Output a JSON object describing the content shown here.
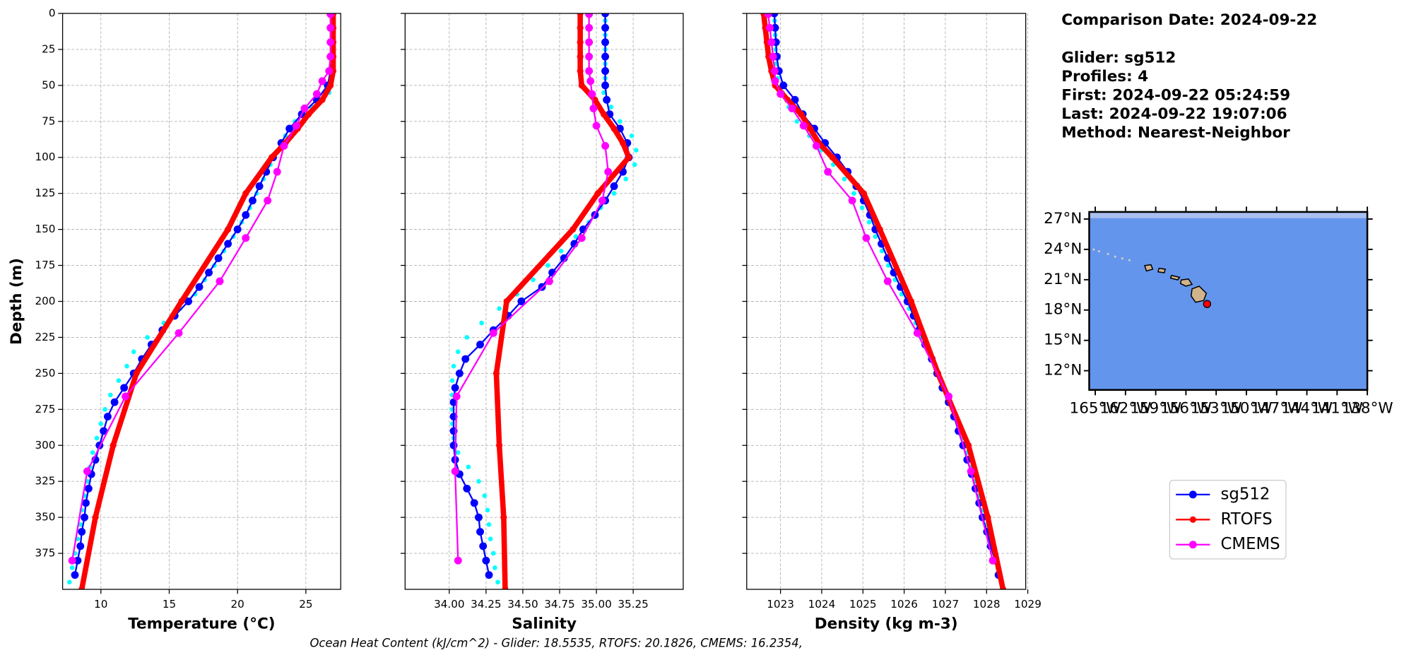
{
  "chart_data": [
    {
      "type": "line",
      "xlabel": "Temperature (°C)",
      "ylabel": "Depth (m)",
      "xlim": [
        7.2,
        27.55
      ],
      "xticks": [
        10,
        15,
        20,
        25
      ],
      "ylim": [
        0,
        400
      ],
      "invert_y": true,
      "yticks": [
        0,
        25,
        50,
        75,
        100,
        125,
        150,
        175,
        200,
        225,
        250,
        275,
        300,
        325,
        350,
        375
      ],
      "grid": true,
      "series": [
        {
          "color": "#00ffff",
          "depths": [
            5,
            15,
            25,
            35,
            45,
            55,
            65,
            75,
            85,
            95,
            105,
            115,
            125,
            135,
            145,
            155,
            165,
            175,
            185,
            195,
            205,
            215,
            225,
            235,
            245,
            255,
            265,
            275,
            285,
            295,
            305,
            315,
            325,
            335,
            345,
            355,
            365,
            375,
            385,
            395
          ],
          "values": [
            26.9,
            26.9,
            26.9,
            26.9,
            26.9,
            26.7,
            25.4,
            24.2,
            23.5,
            23.0,
            22.4,
            21.9,
            21.4,
            20.9,
            20.3,
            19.7,
            19.0,
            18.3,
            17.6,
            16.9,
            15.8,
            14.6,
            13.4,
            12.4,
            11.9,
            11.3,
            10.7,
            10.3,
            10.0,
            9.7,
            9.4,
            9.2,
            9.0,
            8.8,
            8.6,
            8.5,
            8.3,
            8.1,
            7.9,
            7.7
          ]
        },
        {
          "name": "sg512",
          "color": "#0000ff",
          "depths": [
            0,
            10,
            20,
            30,
            40,
            50,
            60,
            70,
            80,
            90,
            100,
            110,
            120,
            130,
            140,
            150,
            160,
            170,
            180,
            190,
            200,
            210,
            220,
            230,
            240,
            250,
            260,
            270,
            280,
            290,
            300,
            310,
            320,
            330,
            340,
            350,
            360,
            370,
            380,
            390
          ],
          "values": [
            26.9,
            26.9,
            26.9,
            26.9,
            26.8,
            26.6,
            25.8,
            24.7,
            23.8,
            23.2,
            22.6,
            22.1,
            21.6,
            21.1,
            20.6,
            20.0,
            19.3,
            18.6,
            17.9,
            17.2,
            16.4,
            15.4,
            14.5,
            13.7,
            13.0,
            12.4,
            11.7,
            11.0,
            10.5,
            10.2,
            9.9,
            9.6,
            9.3,
            9.1,
            8.9,
            8.8,
            8.6,
            8.5,
            8.3,
            8.1
          ]
        },
        {
          "name": "RTOFS",
          "color": "#ff0000",
          "depths": [
            0,
            10,
            20,
            30,
            40,
            50,
            60,
            70,
            80,
            90,
            100,
            125,
            150,
            200,
            250,
            300,
            350,
            400
          ],
          "values": [
            27.0,
            27.0,
            27.0,
            27.0,
            27.0,
            26.8,
            26.2,
            25.2,
            24.4,
            23.5,
            22.5,
            20.6,
            19.3,
            15.9,
            12.6,
            10.9,
            9.6,
            8.6
          ]
        },
        {
          "name": "CMEMS",
          "color": "#ff00ff",
          "depths": [
            0.5,
            10,
            20,
            30,
            40,
            47,
            56,
            66,
            78,
            92,
            110,
            130,
            156,
            186,
            222,
            266,
            318,
            380
          ],
          "values": [
            26.8,
            26.8,
            26.8,
            26.8,
            26.7,
            26.2,
            25.8,
            24.9,
            24.3,
            23.4,
            22.9,
            22.2,
            20.6,
            18.7,
            15.7,
            11.8,
            9.0,
            7.9
          ]
        }
      ]
    },
    {
      "type": "line",
      "xlabel": "Salinity",
      "sharey": true,
      "xlim": [
        33.7,
        35.59
      ],
      "xticks": [
        {
          "value": 34,
          "label": "34.00"
        },
        {
          "value": 34.25,
          "label": "34.25"
        },
        {
          "value": 34.5,
          "label": "34.50"
        },
        {
          "value": 34.75,
          "label": "34.75"
        },
        {
          "value": 35,
          "label": "35.00"
        },
        {
          "value": 35.25,
          "label": "35.25"
        }
      ],
      "grid": true,
      "series": [
        {
          "color": "#00ffff",
          "depths": [
            5,
            15,
            25,
            35,
            45,
            55,
            65,
            75,
            85,
            95,
            105,
            115,
            125,
            135,
            145,
            155,
            165,
            175,
            185,
            195,
            205,
            215,
            225,
            235,
            245,
            255,
            265,
            275,
            285,
            295,
            305,
            315,
            325,
            335,
            345,
            355,
            365,
            375,
            385,
            395
          ],
          "values": [
            35.06,
            35.06,
            35.06,
            35.06,
            35.06,
            35.05,
            35.1,
            35.16,
            35.24,
            35.27,
            35.26,
            35.2,
            35.12,
            35.03,
            34.95,
            34.86,
            34.76,
            34.67,
            34.57,
            34.46,
            34.34,
            34.22,
            34.12,
            34.06,
            34.03,
            34.02,
            34.02,
            34.02,
            34.02,
            34.03,
            34.06,
            34.13,
            34.2,
            34.24,
            34.26,
            34.27,
            34.28,
            34.3,
            34.31,
            34.33
          ]
        },
        {
          "name": "sg512",
          "color": "#0000ff",
          "depths": [
            0,
            10,
            20,
            30,
            40,
            50,
            60,
            70,
            80,
            90,
            100,
            110,
            120,
            130,
            140,
            150,
            160,
            170,
            180,
            190,
            200,
            210,
            220,
            230,
            240,
            250,
            260,
            270,
            280,
            290,
            300,
            310,
            320,
            330,
            340,
            350,
            360,
            370,
            380,
            390
          ],
          "values": [
            35.06,
            35.06,
            35.06,
            35.06,
            35.06,
            35.06,
            35.07,
            35.09,
            35.16,
            35.21,
            35.22,
            35.18,
            35.12,
            35.06,
            34.99,
            34.91,
            34.85,
            34.78,
            34.7,
            34.63,
            34.49,
            34.4,
            34.3,
            34.21,
            34.11,
            34.07,
            34.04,
            34.03,
            34.03,
            34.03,
            34.03,
            34.04,
            34.07,
            34.12,
            34.17,
            34.2,
            34.21,
            34.23,
            34.25,
            34.27
          ]
        },
        {
          "name": "RTOFS",
          "color": "#ff0000",
          "depths": [
            0,
            10,
            20,
            30,
            40,
            50,
            60,
            70,
            80,
            90,
            100,
            125,
            150,
            200,
            250,
            300,
            350,
            400
          ],
          "values": [
            34.89,
            34.89,
            34.89,
            34.89,
            34.89,
            34.9,
            34.99,
            35.05,
            35.12,
            35.18,
            35.22,
            35.01,
            34.84,
            34.39,
            34.32,
            34.34,
            34.37,
            34.38
          ]
        },
        {
          "name": "CMEMS",
          "color": "#ff00ff",
          "depths": [
            0.5,
            10,
            20,
            30,
            40,
            47,
            56,
            66,
            78,
            92,
            110,
            130,
            156,
            186,
            222,
            266,
            318,
            380
          ],
          "values": [
            34.95,
            34.95,
            34.95,
            34.95,
            34.95,
            34.96,
            34.97,
            34.98,
            35.0,
            35.06,
            35.08,
            35.04,
            34.9,
            34.68,
            34.3,
            34.05,
            34.04,
            34.06
          ]
        }
      ]
    },
    {
      "type": "line",
      "xlabel": "Density (kg m-3)",
      "sharey": true,
      "xlim": [
        1022.18,
        1028.95
      ],
      "xticks": [
        1023,
        1024,
        1025,
        1026,
        1027,
        1028,
        1029
      ],
      "grid": true,
      "series": [
        {
          "color": "#00ffff",
          "depths": [
            5,
            15,
            25,
            35,
            45,
            55,
            65,
            75,
            85,
            95,
            105,
            115,
            125,
            135,
            145,
            155,
            165,
            175,
            185,
            195,
            205,
            215,
            225,
            235,
            245,
            255,
            265,
            275,
            285,
            295,
            305,
            315,
            325,
            335,
            345,
            355,
            365,
            375,
            385,
            395
          ],
          "values": [
            1022.86,
            1022.87,
            1022.88,
            1022.9,
            1022.93,
            1023.05,
            1023.2,
            1023.4,
            1023.7,
            1023.98,
            1024.28,
            1024.55,
            1024.78,
            1024.98,
            1025.15,
            1025.3,
            1025.46,
            1025.62,
            1025.78,
            1025.94,
            1026.12,
            1026.28,
            1026.44,
            1026.6,
            1026.76,
            1026.9,
            1027.04,
            1027.18,
            1027.31,
            1027.42,
            1027.53,
            1027.63,
            1027.73,
            1027.82,
            1027.91,
            1028.0,
            1028.09,
            1028.18,
            1028.27,
            1028.36
          ]
        },
        {
          "name": "sg512",
          "color": "#0000ff",
          "depths": [
            0,
            10,
            20,
            30,
            40,
            50,
            60,
            70,
            80,
            90,
            100,
            110,
            120,
            130,
            140,
            150,
            160,
            170,
            180,
            190,
            200,
            210,
            220,
            230,
            240,
            250,
            260,
            270,
            280,
            290,
            300,
            310,
            320,
            330,
            340,
            350,
            360,
            370,
            380,
            390
          ],
          "values": [
            1022.85,
            1022.87,
            1022.89,
            1022.91,
            1022.96,
            1023.07,
            1023.35,
            1023.54,
            1023.82,
            1024.08,
            1024.37,
            1024.63,
            1024.84,
            1025.02,
            1025.17,
            1025.3,
            1025.45,
            1025.6,
            1025.75,
            1025.91,
            1026.08,
            1026.23,
            1026.36,
            1026.51,
            1026.67,
            1026.8,
            1026.93,
            1027.08,
            1027.21,
            1027.32,
            1027.43,
            1027.53,
            1027.64,
            1027.73,
            1027.82,
            1027.9,
            1028.01,
            1028.1,
            1028.21,
            1028.29
          ]
        },
        {
          "name": "RTOFS",
          "color": "#ff0000",
          "depths": [
            0,
            10,
            20,
            30,
            40,
            50,
            60,
            70,
            80,
            90,
            100,
            125,
            150,
            200,
            250,
            300,
            350,
            400
          ],
          "values": [
            1022.59,
            1022.63,
            1022.67,
            1022.71,
            1022.78,
            1022.87,
            1023.17,
            1023.5,
            1023.72,
            1023.93,
            1024.26,
            1025.02,
            1025.41,
            1026.17,
            1026.82,
            1027.56,
            1028.03,
            1028.4
          ]
        },
        {
          "name": "CMEMS",
          "color": "#ff00ff",
          "depths": [
            0.5,
            10,
            20,
            30,
            40,
            47,
            56,
            66,
            78,
            92,
            110,
            130,
            156,
            186,
            222,
            266,
            318,
            380
          ],
          "values": [
            1022.7,
            1022.74,
            1022.78,
            1022.82,
            1022.86,
            1022.87,
            1023.0,
            1023.28,
            1023.56,
            1023.87,
            1024.15,
            1024.74,
            1025.08,
            1025.6,
            1026.32,
            1027.08,
            1027.62,
            1028.15
          ]
        }
      ]
    },
    {
      "type": "map",
      "ocean_color": "#6495ed",
      "xlim": [
        -165.6,
        -138
      ],
      "ylim": [
        10.1,
        27.7
      ],
      "xticks": [
        {
          "value": -165,
          "label": "165°W"
        },
        {
          "value": -162,
          "label": "162°W"
        },
        {
          "value": -159,
          "label": "159°W"
        },
        {
          "value": -156,
          "label": "156°W"
        },
        {
          "value": -153,
          "label": "153°W"
        },
        {
          "value": -150,
          "label": "150°W"
        },
        {
          "value": -147,
          "label": "147°W"
        },
        {
          "value": -144,
          "label": "144°W"
        },
        {
          "value": -141,
          "label": "141°W"
        },
        {
          "value": -138,
          "label": "138°W"
        }
      ],
      "yticks": [
        {
          "value": 12,
          "label": "12°N"
        },
        {
          "value": 15,
          "label": "15°N"
        },
        {
          "value": 18,
          "label": "18°N"
        },
        {
          "value": 21,
          "label": "21°N"
        },
        {
          "value": 24,
          "label": "24°N"
        },
        {
          "value": 27,
          "label": "27°N"
        }
      ],
      "marker": {
        "x": -153.9,
        "y": 18.6,
        "color": "#ff0000"
      }
    }
  ],
  "info": {
    "comparison_date": "Comparison Date: 2024-09-22",
    "glider": "Glider: sg512",
    "profiles": "Profiles: 4",
    "first": "First: 2024-09-22 05:24:59",
    "last": "Last: 2024-09-22 19:07:06",
    "method": "Method: Nearest-Neighbor"
  },
  "footer": "Ocean Heat Content (kJ/cm^2) - Glider: 18.5535,  RTOFS: 20.1826,  CMEMS: 16.2354,"
}
